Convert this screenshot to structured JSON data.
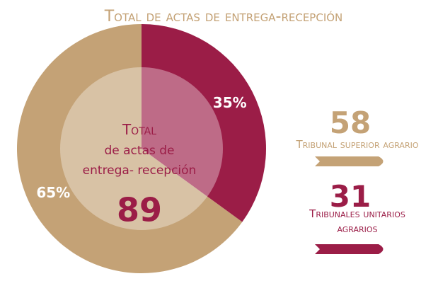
{
  "chart_data": {
    "type": "pie",
    "title": "Total de actas de entrega-recepción",
    "center_label": [
      "Total",
      "de actas de",
      "entrega- recepción"
    ],
    "total": 89,
    "categories": [
      "Tribunal superior agrario",
      "Tribunales unitarios agrarios"
    ],
    "counts": [
      58,
      31
    ],
    "values": [
      65,
      35
    ],
    "value_labels": [
      "65%",
      "35%"
    ],
    "colors": [
      "#c4a276",
      "#9b1d47"
    ]
  }
}
